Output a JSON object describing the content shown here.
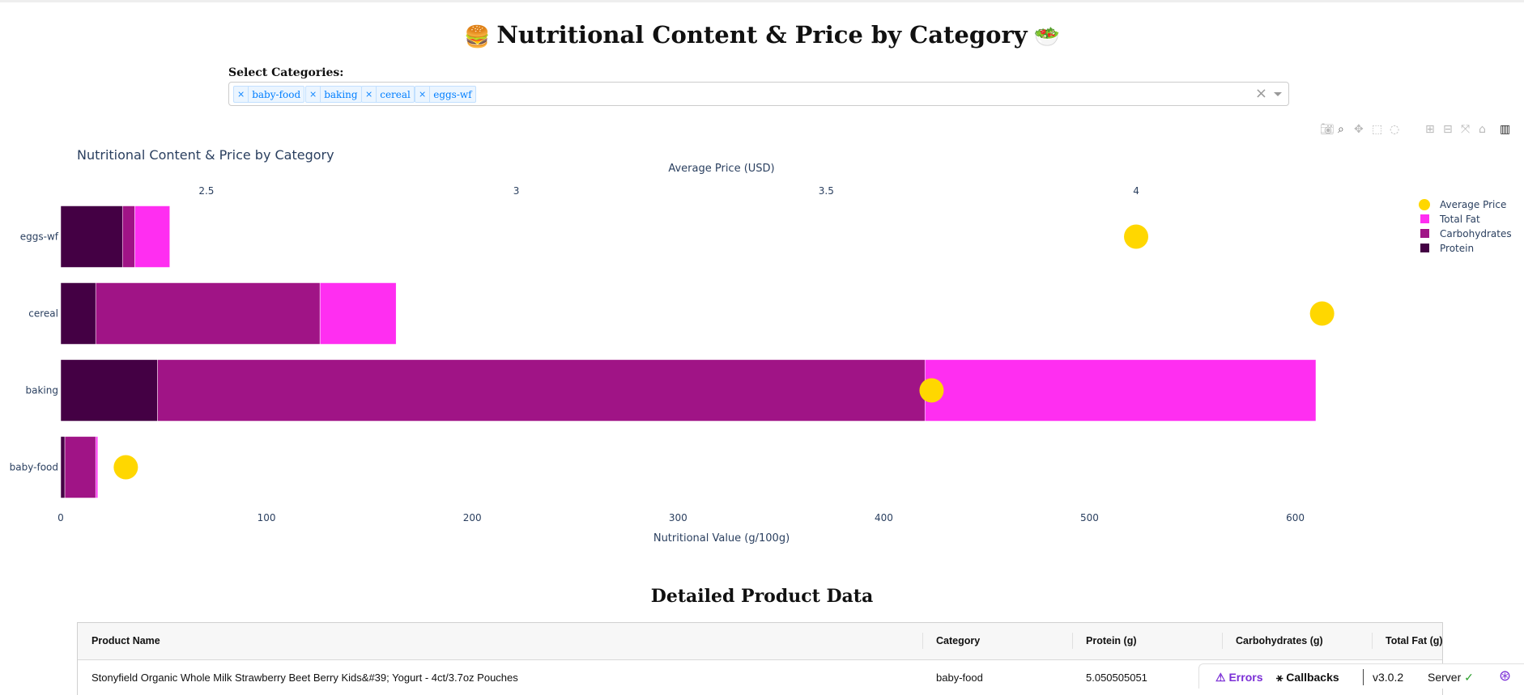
{
  "header": {
    "title": "Nutritional Content & Price by Category",
    "emoji_left": "🍔",
    "emoji_right": "🥗"
  },
  "filter": {
    "label": "Select Categories:",
    "selected": [
      "baby-food",
      "baking",
      "cereal",
      "eggs-wf"
    ],
    "chip_remove_glyph": "×",
    "clear_glyph": "×"
  },
  "modebar": {
    "icons": [
      "camera-icon",
      "zoom-icon",
      "pan-icon",
      "box-select-icon",
      "lasso-icon",
      "zoom-in-icon",
      "zoom-out-icon",
      "autoscale-icon",
      "reset-axes-icon",
      "plotly-logo-icon"
    ]
  },
  "chart_data": {
    "type": "bar",
    "orientation": "horizontal",
    "barmode": "stack",
    "title": "Nutritional Content & Price by Category",
    "categories": [
      "baby-food",
      "baking",
      "cereal",
      "eggs-wf"
    ],
    "series": [
      {
        "name": "Protein",
        "color": "#440044",
        "values": [
          2,
          47,
          17,
          30
        ]
      },
      {
        "name": "Carbohydrates",
        "color": "#a01486",
        "values": [
          15,
          373,
          109,
          6
        ]
      },
      {
        "name": "Total Fat",
        "color": "#ff2ef1",
        "values": [
          1,
          190,
          37,
          17
        ]
      }
    ],
    "overlay_series": {
      "name": "Average Price",
      "type": "scatter",
      "color": "#ffd700",
      "values": [
        2.37,
        3.67,
        4.3,
        4.0
      ]
    },
    "xaxis_bottom": {
      "label": "Nutritional Value (g/100g)",
      "range": [
        0,
        610
      ],
      "ticks": [
        0,
        100,
        200,
        300,
        400,
        500,
        600
      ]
    },
    "xaxis_top": {
      "label": "Average Price (USD)",
      "range": [
        2.265,
        4.29
      ],
      "ticks": [
        2.5,
        3,
        3.5,
        4
      ]
    },
    "legend": {
      "placement": "top-right",
      "order": [
        "Average Price",
        "Total Fat",
        "Carbohydrates",
        "Protein"
      ]
    },
    "grid": false
  },
  "table": {
    "title": "Detailed Product Data",
    "columns": [
      "Product Name",
      "Category",
      "Protein (g)",
      "Carbohydrates (g)",
      "Total Fat (g)"
    ],
    "rows": [
      [
        "Stonyfield Organic Whole Milk Strawberry Beet Berry Kids&#39; Yogurt - 4ct/3.7oz Pouches",
        "baby-food",
        "5.050505051",
        "",
        ""
      ]
    ]
  },
  "devtools": {
    "errors": "Errors",
    "callbacks": "Callbacks",
    "version": "v3.0.2",
    "server": "Server"
  }
}
